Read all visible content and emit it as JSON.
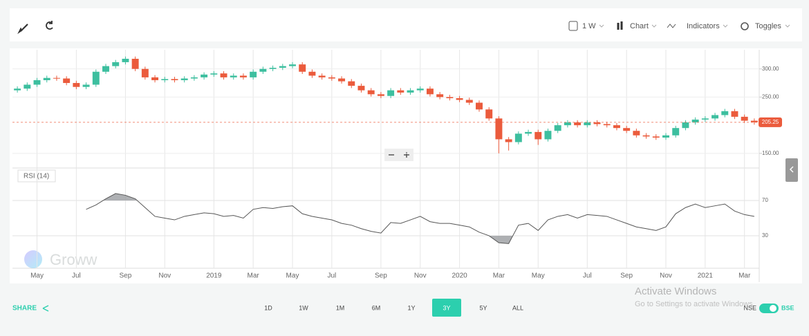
{
  "toolbar": {
    "interval": "1 W",
    "chart": "Chart",
    "indicators": "Indicators",
    "toggles": "Toggles"
  },
  "chart_data": [
    {
      "type": "candlestick",
      "categories": [
        null,
        null,
        "May",
        null,
        null,
        null,
        "Jul",
        null,
        null,
        null,
        null,
        "Sep",
        null,
        null,
        null,
        "Nov",
        null,
        null,
        null,
        null,
        "2019",
        null,
        null,
        null,
        "Mar",
        null,
        null,
        null,
        "May",
        null,
        null,
        null,
        "Jul",
        null,
        null,
        null,
        null,
        "Sep",
        null,
        null,
        null,
        "Nov",
        null,
        null,
        null,
        "2020",
        null,
        null,
        null,
        "Mar",
        null,
        null,
        null,
        "May",
        null,
        null,
        null,
        null,
        "Jul",
        null,
        null,
        null,
        "Sep",
        null,
        null,
        null,
        "Nov",
        null,
        null,
        null,
        "2021",
        null,
        null,
        null,
        "Mar",
        null
      ],
      "open": [
        262,
        265,
        272,
        280,
        284,
        283,
        275,
        268,
        272,
        295,
        305,
        312,
        318,
        300,
        285,
        280,
        282,
        280,
        283,
        285,
        290,
        292,
        285,
        288,
        285,
        295,
        300,
        302,
        305,
        308,
        295,
        288,
        285,
        283,
        278,
        270,
        262,
        255,
        252,
        262,
        258,
        262,
        265,
        255,
        250,
        248,
        245,
        240,
        228,
        212,
        175,
        170,
        185,
        188,
        175,
        190,
        200,
        205,
        200,
        205,
        202,
        200,
        195,
        190,
        182,
        180,
        178,
        182,
        195,
        205,
        210,
        212,
        218,
        225,
        215,
        208
      ],
      "high": [
        269,
        276,
        284,
        288,
        288,
        287,
        279,
        276,
        299,
        309,
        316,
        322,
        322,
        304,
        289,
        286,
        286,
        287,
        289,
        294,
        296,
        296,
        292,
        292,
        299,
        304,
        306,
        309,
        312,
        312,
        299,
        292,
        289,
        287,
        282,
        274,
        266,
        259,
        266,
        266,
        266,
        269,
        269,
        259,
        254,
        252,
        249,
        244,
        232,
        216,
        179,
        189,
        192,
        192,
        194,
        204,
        209,
        209,
        209,
        209,
        206,
        204,
        199,
        194,
        186,
        184,
        186,
        199,
        209,
        214,
        216,
        222,
        229,
        229,
        219,
        212
      ],
      "low": [
        258,
        261,
        268,
        276,
        279,
        271,
        264,
        264,
        268,
        291,
        301,
        308,
        296,
        281,
        276,
        276,
        276,
        276,
        279,
        281,
        286,
        281,
        281,
        281,
        281,
        291,
        296,
        298,
        301,
        291,
        284,
        281,
        279,
        274,
        266,
        258,
        251,
        248,
        248,
        254,
        254,
        258,
        251,
        246,
        244,
        241,
        236,
        224,
        208,
        150,
        155,
        166,
        181,
        165,
        171,
        186,
        196,
        196,
        196,
        198,
        196,
        191,
        186,
        178,
        176,
        174,
        174,
        178,
        191,
        201,
        206,
        208,
        214,
        211,
        204,
        201
      ],
      "close": [
        265,
        272,
        280,
        284,
        283,
        275,
        268,
        272,
        295,
        305,
        312,
        318,
        300,
        285,
        280,
        282,
        280,
        283,
        285,
        290,
        292,
        285,
        288,
        285,
        295,
        300,
        302,
        305,
        308,
        295,
        288,
        285,
        283,
        278,
        270,
        262,
        255,
        252,
        262,
        258,
        262,
        265,
        255,
        250,
        248,
        245,
        240,
        228,
        212,
        175,
        170,
        185,
        188,
        175,
        190,
        200,
        205,
        200,
        205,
        202,
        200,
        195,
        190,
        182,
        180,
        178,
        182,
        195,
        205,
        210,
        212,
        218,
        225,
        215,
        208,
        205.25
      ],
      "up_color": "#3dbf9f",
      "down_color": "#eb5b3c",
      "ylim": [
        124,
        334
      ],
      "yticks": [
        {
          "value": 300,
          "label": "300.00"
        },
        {
          "value": 250,
          "label": "250.00"
        },
        {
          "value": 150,
          "label": "150.00"
        }
      ],
      "last_price": 205.25,
      "last_price_color": "#eb5b3c",
      "grid": true
    },
    {
      "type": "line",
      "title": "RSI (14)",
      "values": [
        null,
        null,
        null,
        null,
        null,
        null,
        null,
        60,
        65,
        72,
        78,
        76,
        72,
        62,
        52,
        50,
        48,
        52,
        54,
        56,
        55,
        52,
        53,
        50,
        60,
        62,
        61,
        63,
        64,
        55,
        52,
        50,
        48,
        44,
        42,
        38,
        35,
        33,
        45,
        44,
        48,
        52,
        46,
        44,
        44,
        42,
        40,
        34,
        30,
        22,
        21,
        42,
        44,
        36,
        48,
        52,
        54,
        50,
        54,
        53,
        52,
        48,
        44,
        40,
        38,
        36,
        40,
        55,
        62,
        66,
        62,
        64,
        66,
        58,
        54,
        52
      ],
      "color": "#555555",
      "ylim": [
        -7,
        107
      ],
      "yticks": [
        70,
        30
      ],
      "grid": true
    }
  ],
  "watermark": "Groww",
  "footer": {
    "share": "SHARE",
    "ranges": [
      "1D",
      "1W",
      "1M",
      "6M",
      "1Y",
      "3Y",
      "5Y",
      "ALL"
    ],
    "active_range": "3Y",
    "exchanges": [
      "NSE",
      "BSE"
    ]
  },
  "overlay": {
    "title": "Activate Windows",
    "subtitle": "Go to Settings to activate Windows."
  }
}
